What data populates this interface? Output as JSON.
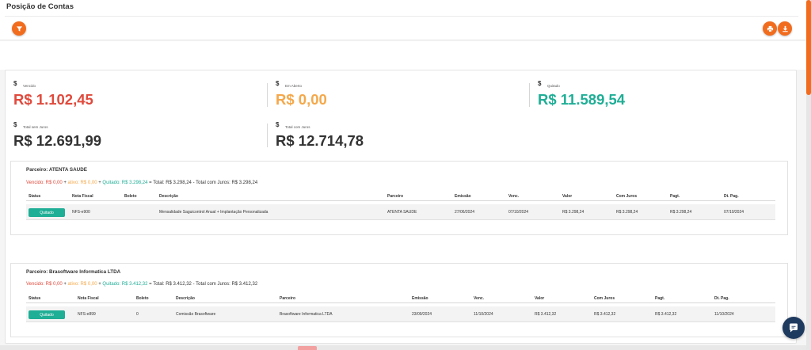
{
  "page": {
    "title": "Posição de Contas"
  },
  "toolbar": {
    "filter_icon": "filter-icon",
    "print_icon": "printer-icon",
    "download_icon": "download-icon"
  },
  "colors": {
    "accent": "#f26c1e",
    "red": "#e04a3c",
    "orange": "#f5a84a",
    "green": "#1fae96",
    "dark": "#1f3a5f"
  },
  "summary": {
    "currency_symbol": "$",
    "vencido": {
      "label": "Vencido",
      "value": "R$ 1.102,45"
    },
    "em_aberto": {
      "label": "Em Aberto",
      "value": "R$ 0,00"
    },
    "quitado": {
      "label": "Quitado",
      "value": "R$ 11.589,54"
    },
    "total_sem_juros": {
      "label": "Total sem Juros",
      "value": "R$ 12.691,99"
    },
    "total_com_juros": {
      "label": "Total com Juros",
      "value": "R$ 12.714,78"
    }
  },
  "columns": [
    "Status",
    "Nota Fiscal",
    "Boleto",
    "Descrição",
    "Parceiro",
    "Emissão",
    "Venc.",
    "Valor",
    "Com Juros",
    "Pagt.",
    "Dt. Pag."
  ],
  "partners": [
    {
      "title": "Parceiro: ATENTA SAUDE",
      "summary": {
        "vencido": "Vencido: R$ 0,00",
        "ativo": "ativo: R$ 0,00",
        "quitado": "Quitado: R$ 3.298,24",
        "sep1": " + ",
        "sep2": " + ",
        "rest": " = Total: R$ 3.298,24 - Total com Juros: R$ 3.298,24"
      },
      "rows": [
        {
          "status": "Quitado",
          "nota_fiscal": "NFS-e900",
          "boleto": "",
          "descricao": "Mensalidade Saguicontrol Anual + Implantação Personalizada",
          "parceiro": "ATENTA SAUDE",
          "emissao": "27/06/2024",
          "venc": "07/10/2024",
          "valor": "R$ 3.298,24",
          "com_juros": "R$ 3.298,24",
          "pagt": "R$ 3.298,24",
          "dt_pag": "07/10/2024"
        }
      ]
    },
    {
      "title": "Parceiro: Brasoftware Informatica LTDA",
      "summary": {
        "vencido": "Vencido: R$ 0,00",
        "ativo": "ativo: R$ 0,00",
        "quitado": "Quitado: R$ 3.412,32",
        "sep1": " + ",
        "sep2": " + ",
        "rest": " = Total: R$ 3.412,32 - Total com Juros: R$ 3.412,32"
      },
      "rows": [
        {
          "status": "Quitado",
          "nota_fiscal": "NFS-e899",
          "boleto": "0",
          "descricao": "Comissão Brasoftware",
          "parceiro": "Brasoftware Informatica LTDA",
          "emissao": "23/09/2024",
          "venc": "11/10/2024",
          "valor": "R$ 3.412,32",
          "com_juros": "R$ 3.412,32",
          "pagt": "R$ 3.412,32",
          "dt_pag": "11/10/2024"
        }
      ]
    }
  ],
  "chat": {
    "icon": "chat-icon"
  }
}
